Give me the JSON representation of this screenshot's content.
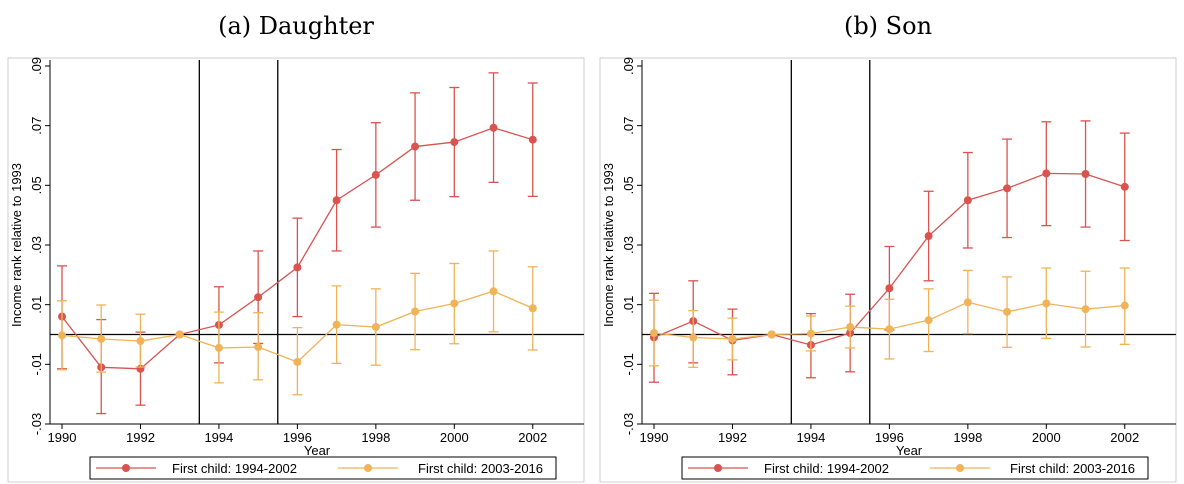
{
  "colors": {
    "series_1": "#d9534f",
    "series_2": "#f0b357",
    "frame": "#cfcfcf",
    "axis": "#000000"
  },
  "chart_data": [
    {
      "type": "line",
      "panel_title": "(a) Daughter",
      "xlabel": "Year",
      "ylabel": "Income rank relative to 1993",
      "xlim": [
        1990,
        2003
      ],
      "ylim": [
        -0.03,
        0.09
      ],
      "xticks": [
        1990,
        1992,
        1994,
        1996,
        1998,
        2000,
        2002
      ],
      "xtick_labels": [
        "1990",
        "1992",
        "1994",
        "1996",
        "1998",
        "2000",
        "2002"
      ],
      "yticks": [
        -0.03,
        -0.01,
        0.01,
        0.03,
        0.05,
        0.07,
        0.09
      ],
      "ytick_labels": [
        "-.03",
        "-.01",
        ".01",
        ".03",
        ".05",
        ".07",
        ".09"
      ],
      "reference_hline": 0,
      "reference_vlines": [
        1993.5,
        1995.5
      ],
      "grid": false,
      "legend_position": "bottom",
      "series": [
        {
          "name": "First child: 1994-2002",
          "x": [
            1990,
            1991,
            1992,
            1993,
            1994,
            1995,
            1996,
            1997,
            1998,
            1999,
            2000,
            2001,
            2002
          ],
          "y": [
            0.006,
            -0.011,
            -0.0115,
            0.0,
            0.0032,
            0.0125,
            0.0225,
            0.045,
            0.0535,
            0.063,
            0.0645,
            0.0693,
            0.0653
          ],
          "ci_low": [
            -0.0115,
            -0.0265,
            -0.0237,
            0.0,
            -0.0095,
            -0.003,
            0.006,
            0.028,
            0.036,
            0.045,
            0.0462,
            0.051,
            0.0463
          ],
          "ci_high": [
            0.023,
            0.005,
            0.0008,
            0.0,
            0.016,
            0.028,
            0.039,
            0.062,
            0.071,
            0.081,
            0.0828,
            0.0877,
            0.0843
          ]
        },
        {
          "name": "First child: 2003-2016",
          "x": [
            1990,
            1991,
            1992,
            1993,
            1994,
            1995,
            1996,
            1997,
            1998,
            1999,
            2000,
            2001,
            2002
          ],
          "y": [
            -0.0003,
            -0.0015,
            -0.0022,
            0.0,
            -0.0045,
            -0.0042,
            -0.0092,
            0.0033,
            0.0025,
            0.0077,
            0.0104,
            0.0145,
            0.0088
          ],
          "ci_low": [
            -0.0118,
            -0.0126,
            -0.0109,
            0.0,
            -0.0162,
            -0.0152,
            -0.0202,
            -0.0097,
            -0.0103,
            -0.0051,
            -0.0031,
            0.0009,
            -0.0052
          ],
          "ci_high": [
            0.0113,
            0.0099,
            0.0068,
            0.0,
            0.0075,
            0.0073,
            0.0023,
            0.0163,
            0.0153,
            0.0205,
            0.0238,
            0.028,
            0.0227
          ]
        }
      ]
    },
    {
      "type": "line",
      "panel_title": "(b) Son",
      "xlabel": "Year",
      "ylabel": "Income rank relative to 1993",
      "xlim": [
        1990,
        2003
      ],
      "ylim": [
        -0.03,
        0.09
      ],
      "xticks": [
        1990,
        1992,
        1994,
        1996,
        1998,
        2000,
        2002
      ],
      "xtick_labels": [
        "1990",
        "1992",
        "1994",
        "1996",
        "1998",
        "2000",
        "2002"
      ],
      "yticks": [
        -0.03,
        -0.01,
        0.01,
        0.03,
        0.05,
        0.07,
        0.09
      ],
      "ytick_labels": [
        "-.03",
        "-.01",
        ".01",
        ".03",
        ".05",
        ".07",
        ".09"
      ],
      "reference_hline": 0,
      "reference_vlines": [
        1993.5,
        1995.5
      ],
      "grid": false,
      "legend_position": "bottom",
      "series": [
        {
          "name": "First child: 1994-2002",
          "x": [
            1990,
            1991,
            1992,
            1993,
            1994,
            1995,
            1996,
            1997,
            1998,
            1999,
            2000,
            2001,
            2002
          ],
          "y": [
            -0.001,
            0.0045,
            -0.002,
            0.0,
            -0.0035,
            0.0005,
            0.0155,
            0.033,
            0.045,
            0.049,
            0.054,
            0.0538,
            0.0495
          ],
          "ci_low": [
            -0.016,
            -0.0095,
            -0.0135,
            0.0,
            -0.0145,
            -0.0125,
            0.0015,
            0.018,
            0.029,
            0.0325,
            0.0365,
            0.036,
            0.0315
          ],
          "ci_high": [
            0.0138,
            0.018,
            0.0085,
            0.0,
            0.007,
            0.0135,
            0.0295,
            0.048,
            0.061,
            0.0655,
            0.0713,
            0.0716,
            0.0675
          ]
        },
        {
          "name": "First child: 2003-2016",
          "x": [
            1990,
            1991,
            1992,
            1993,
            1994,
            1995,
            1996,
            1997,
            1998,
            1999,
            2000,
            2001,
            2002
          ],
          "y": [
            0.0005,
            -0.001,
            -0.0015,
            0.0,
            0.0003,
            0.0025,
            0.0018,
            0.0048,
            0.0108,
            0.0076,
            0.0104,
            0.0085,
            0.0097
          ],
          "ci_low": [
            -0.0105,
            -0.011,
            -0.0085,
            0.0,
            -0.0055,
            -0.0045,
            -0.0082,
            -0.0057,
            0.0003,
            -0.0043,
            -0.0013,
            -0.0042,
            -0.0033
          ],
          "ci_high": [
            0.0115,
            0.008,
            0.0055,
            0.0,
            0.0062,
            0.0095,
            0.0118,
            0.0153,
            0.0215,
            0.0193,
            0.0223,
            0.0212,
            0.0223
          ]
        }
      ]
    }
  ]
}
